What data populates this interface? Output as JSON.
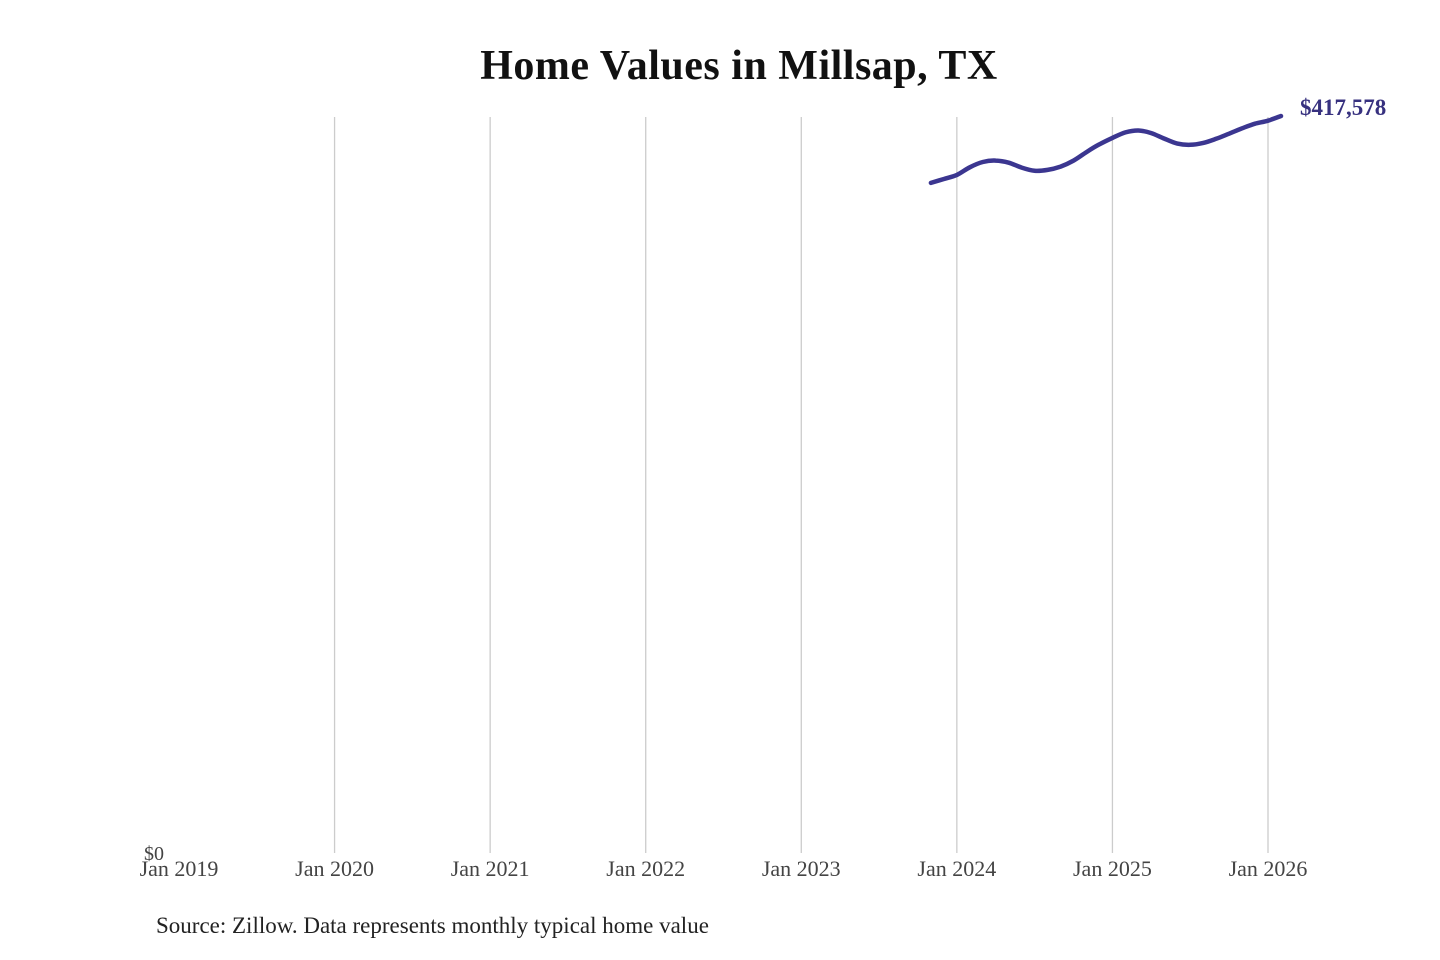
{
  "title": "Home Values in Millsap, TX",
  "latest_value_label": "$417,578",
  "y_axis": {
    "zero_label": "$0"
  },
  "source_note": "Source: Zillow. Data represents monthly typical home value",
  "colors": {
    "line": "#3b3690",
    "latest_value_text": "#37317f",
    "gridline": "#cccccc",
    "axis_text": "#444444",
    "title_text": "#111111",
    "source_text": "#222222",
    "background": "#ffffff"
  },
  "chart_data": {
    "type": "line",
    "title": "Home Values in Millsap, TX",
    "xlabel": "",
    "ylabel": "",
    "legend": "none",
    "grid": "vertical-only",
    "ylim": [
      0,
      417578
    ],
    "y_tick_labels": [
      "$0"
    ],
    "x_tick_labels": [
      "Jan 2019",
      "Jan 2020",
      "Jan 2021",
      "Jan 2022",
      "Jan 2023",
      "Jan 2024",
      "Jan 2025",
      "Jan 2026"
    ],
    "gridline_labels": [
      "Jan 2020",
      "Jan 2021",
      "Jan 2022",
      "Jan 2023",
      "Jan 2024",
      "Jan 2025",
      "Jan 2026"
    ],
    "annotation": {
      "text": "$417,578",
      "position": "end-of-line"
    },
    "series": [
      {
        "name": "Monthly typical home value",
        "points": [
          {
            "month": "2023-11",
            "value": 379800
          },
          {
            "month": "2023-12",
            "value": 382000
          },
          {
            "month": "2024-01",
            "value": 384300
          },
          {
            "month": "2024-02",
            "value": 388600
          },
          {
            "month": "2024-03",
            "value": 391600
          },
          {
            "month": "2024-04",
            "value": 392400
          },
          {
            "month": "2024-05",
            "value": 391200
          },
          {
            "month": "2024-06",
            "value": 388400
          },
          {
            "month": "2024-07",
            "value": 386600
          },
          {
            "month": "2024-08",
            "value": 387100
          },
          {
            "month": "2024-09",
            "value": 389000
          },
          {
            "month": "2024-10",
            "value": 392400
          },
          {
            "month": "2024-11",
            "value": 397200
          },
          {
            "month": "2024-12",
            "value": 401600
          },
          {
            "month": "2025-01",
            "value": 405200
          },
          {
            "month": "2025-02",
            "value": 408300
          },
          {
            "month": "2025-03",
            "value": 409400
          },
          {
            "month": "2025-04",
            "value": 407900
          },
          {
            "month": "2025-05",
            "value": 404800
          },
          {
            "month": "2025-06",
            "value": 402000
          },
          {
            "month": "2025-07",
            "value": 401300
          },
          {
            "month": "2025-08",
            "value": 402400
          },
          {
            "month": "2025-09",
            "value": 404700
          },
          {
            "month": "2025-10",
            "value": 407600
          },
          {
            "month": "2025-11",
            "value": 410600
          },
          {
            "month": "2025-12",
            "value": 413200
          },
          {
            "month": "2026-01",
            "value": 414900
          },
          {
            "month": "2026-02",
            "value": 417578
          }
        ]
      }
    ]
  }
}
